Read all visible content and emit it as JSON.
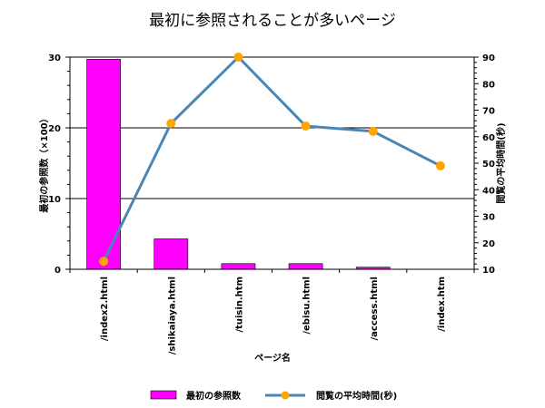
{
  "chart_data": {
    "type": "bar+line",
    "title": "最初に参照されることが多いページ",
    "xlabel": "ページ名",
    "ylabel_left": "最初の参照数（×100）",
    "ylabel_right": "閲覧の平均時間(秒)",
    "categories": [
      "/index2.html",
      "/shikaiaya.html",
      "/tuisin.htm",
      "/ebisu.html",
      "/access.html",
      "/index.htm"
    ],
    "ylim_left": [
      0,
      30
    ],
    "yticks_left": [
      "0",
      "10",
      "20",
      "30"
    ],
    "ylim_right": [
      10,
      90
    ],
    "yticks_right": [
      "10",
      "20",
      "30",
      "40",
      "50",
      "60",
      "70",
      "80",
      "90"
    ],
    "grid": true,
    "legend_position": "bottom",
    "series": [
      {
        "name": "最初の参照数",
        "type": "bar",
        "axis": "left",
        "color": "#ff00ff",
        "values": [
          29.7,
          4.3,
          0.8,
          0.8,
          0.3,
          0
        ]
      },
      {
        "name": "閲覧の平均時間(秒)",
        "type": "line",
        "axis": "right",
        "color": "#4a86b4",
        "marker_color": "#ffa500",
        "values": [
          13,
          65,
          90,
          64,
          62,
          49
        ]
      }
    ]
  }
}
